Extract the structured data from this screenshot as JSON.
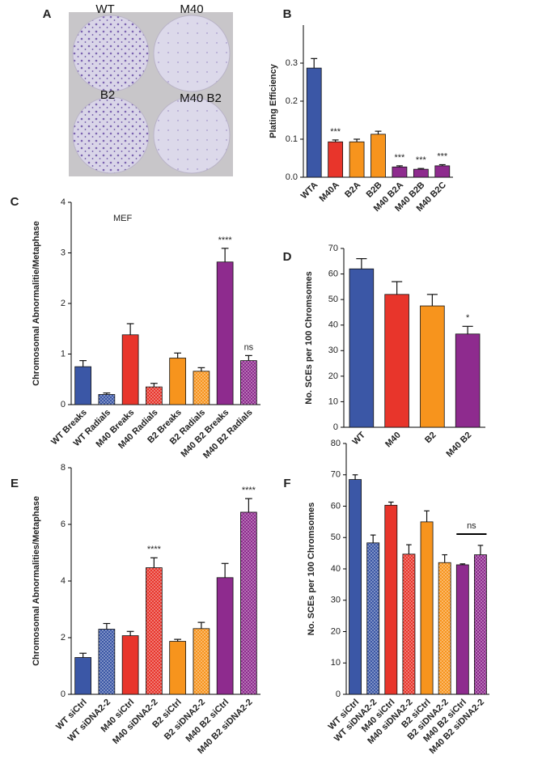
{
  "panel_a": {
    "panel": "A",
    "labels": [
      "WT",
      "M40",
      "B2",
      "M40 B2"
    ]
  },
  "chart_data": [
    {
      "type": "bar",
      "panel": "B",
      "ylabel": "Plating Efficiency",
      "categories": [
        "WTA",
        "M40A",
        "B2A",
        "B2B",
        "M40 B2A",
        "M40 B2B",
        "M40 B2C"
      ],
      "values": [
        0.287,
        0.093,
        0.093,
        0.113,
        0.027,
        0.021,
        0.03
      ],
      "errors": [
        0.025,
        0.005,
        0.007,
        0.008,
        0.003,
        0.002,
        0.003
      ],
      "colors": [
        "#3b57a6",
        "#e8352b",
        "#f7941d",
        "#f7941d",
        "#8e2b8e",
        "#8e2b8e",
        "#8e2b8e"
      ],
      "patterned": [
        false,
        false,
        false,
        false,
        false,
        false,
        false
      ],
      "significance": [
        null,
        "***",
        null,
        null,
        "***",
        "***",
        "***"
      ],
      "ylim": [
        0,
        0.4
      ],
      "yticks": [
        {
          "value": 0,
          "label": "0.0"
        },
        0.1,
        0.2,
        0.3
      ]
    },
    {
      "type": "bar",
      "panel": "C",
      "ylabel": "Chromosomal Abnormalitie/Metaphase",
      "annotation": "MEF",
      "categories": [
        "WT Breaks",
        "WT Radials",
        "M40 Breaks",
        "M40 Radials",
        "B2 Breaks",
        "B2 Radials",
        "M40 B2 Breaks",
        "M40 B2 Radials"
      ],
      "values": [
        0.75,
        0.2,
        1.38,
        0.35,
        0.92,
        0.66,
        2.82,
        0.87
      ],
      "errors": [
        0.12,
        0.03,
        0.22,
        0.07,
        0.1,
        0.07,
        0.27,
        0.1
      ],
      "colors": [
        "#3b57a6",
        "#3b57a6",
        "#e8352b",
        "#e8352b",
        "#f7941d",
        "#f7941d",
        "#8e2b8e",
        "#8e2b8e"
      ],
      "patterned": [
        false,
        true,
        false,
        true,
        false,
        true,
        false,
        true
      ],
      "significance": [
        null,
        null,
        null,
        null,
        null,
        null,
        "****",
        "ns"
      ],
      "ylim": [
        0,
        4
      ],
      "yticks": [
        0,
        1,
        2,
        3,
        4
      ]
    },
    {
      "type": "bar",
      "panel": "D",
      "ylabel": "No. SCEs per 100 Chromsomes",
      "categories": [
        "WT",
        "M40",
        "B2",
        "M40 B2"
      ],
      "values": [
        62,
        52,
        47.5,
        36.5
      ],
      "errors": [
        4,
        5,
        4.5,
        3
      ],
      "colors": [
        "#3b57a6",
        "#e8352b",
        "#f7941d",
        "#8e2b8e"
      ],
      "patterned": [
        false,
        false,
        false,
        false
      ],
      "significance": [
        null,
        null,
        null,
        "*"
      ],
      "ylim": [
        0,
        70
      ],
      "yticks": [
        0,
        10,
        20,
        30,
        40,
        50,
        60,
        70
      ]
    },
    {
      "type": "bar",
      "panel": "E",
      "ylabel": "Chromosomal Abnormalities/Metaphase",
      "categories": [
        "WT siCtrl",
        "WT siDNA2-2",
        "M40 siCtrl",
        "M40 siDNA2-2",
        "B2 siCtrl",
        "B2 siDNA2-2",
        "M40 B2 siCtrl",
        "M40 B2 siDNA2-2"
      ],
      "values": [
        1.3,
        2.3,
        2.07,
        4.47,
        1.87,
        2.32,
        4.12,
        6.43
      ],
      "errors": [
        0.15,
        0.2,
        0.15,
        0.35,
        0.07,
        0.22,
        0.5,
        0.48
      ],
      "colors": [
        "#3b57a6",
        "#3b57a6",
        "#e8352b",
        "#e8352b",
        "#f7941d",
        "#f7941d",
        "#8e2b8e",
        "#8e2b8e"
      ],
      "patterned": [
        false,
        true,
        false,
        true,
        false,
        true,
        false,
        true
      ],
      "significance": [
        null,
        null,
        null,
        "****",
        null,
        null,
        null,
        "****"
      ],
      "ylim": [
        0,
        8
      ],
      "yticks": [
        0,
        2,
        4,
        6,
        8
      ]
    },
    {
      "type": "bar",
      "panel": "F",
      "ylabel": "No. SCEs per 100 Chromsomes",
      "categories": [
        "WT siCtrl",
        "WT siDNA2-2",
        "M40 siCtrl",
        "M40 siDNA2-2",
        "B2 siCtrl",
        "B2 siDNA2-2",
        "M40 B2 siCtrl",
        "M40 B2 siDNA2-2"
      ],
      "values": [
        68.5,
        48.3,
        60.3,
        44.7,
        55,
        42,
        41.3,
        44.5
      ],
      "errors": [
        1.5,
        2.5,
        1,
        3,
        3.5,
        2.5,
        0.3,
        3
      ],
      "colors": [
        "#3b57a6",
        "#3b57a6",
        "#e8352b",
        "#e8352b",
        "#f7941d",
        "#f7941d",
        "#8e2b8e",
        "#8e2b8e"
      ],
      "patterned": [
        false,
        true,
        false,
        true,
        false,
        true,
        false,
        true
      ],
      "bracket": {
        "text": "ns",
        "from": 6,
        "to": 7
      },
      "ylim": [
        0,
        80
      ],
      "yticks": [
        0,
        10,
        20,
        30,
        40,
        50,
        60,
        70,
        80
      ]
    }
  ]
}
